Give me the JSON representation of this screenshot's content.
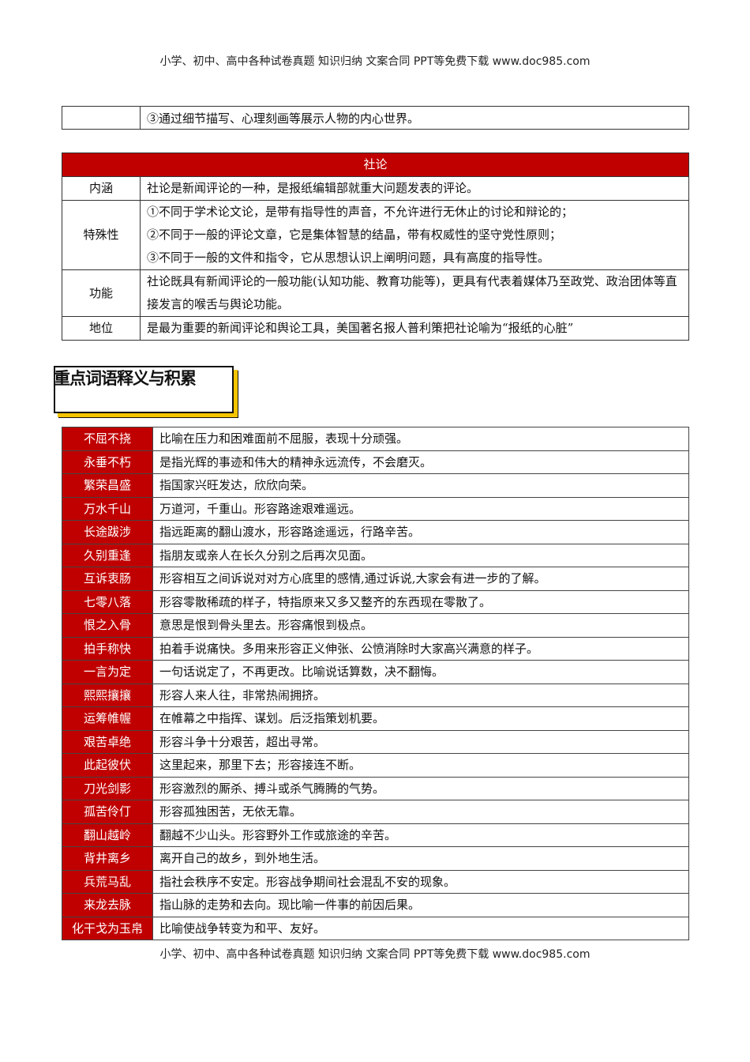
{
  "header": "小学、初中、高中各种试卷真题 知识归纳 文案合同 PPT等免费下载   www.doc985.com",
  "footer": "小学、初中、高中各种试卷真题 知识归纳 文案合同 PPT等免费下载   www.doc985.com",
  "top_row": {
    "label": "",
    "text": "③通过细节描写、心理刻画等展示人物的内心世界。"
  },
  "editorial": {
    "title": "社论",
    "rows": [
      {
        "label": "内涵",
        "lines": [
          "社论是新闻评论的一种，是报纸编辑部就重大问题发表的评论。"
        ]
      },
      {
        "label": "特殊性",
        "lines": [
          "①不同于学术论文论，是带有指导性的声音，不允许进行无休止的讨论和辩论的；",
          "②不同于一般的评论文章，它是集体智慧的结晶，带有权威性的坚守党性原则；",
          "③不同于一般的文件和指令，它从思想认识上阐明问题，具有高度的指导性。"
        ]
      },
      {
        "label": "功能",
        "lines": [
          "社论既具有新闻评论的一般功能(认知功能、教育功能等)，更具有代表着媒体乃至政党、政治团体等直接发言的喉舌与舆论功能。"
        ]
      },
      {
        "label": "地位",
        "lines": [
          "是最为重要的新闻评论和舆论工具，美国著名报人普利策把社论喻为“报纸的心脏”"
        ]
      }
    ]
  },
  "section_heading": "重点词语释义与积累",
  "colors": {
    "accent": "#c00000",
    "shadow": "#f5c400"
  },
  "vocab": [
    {
      "word": "不屈不挠",
      "meaning": "比喻在压力和困难面前不屈服，表现十分顽强。"
    },
    {
      "word": "永垂不朽",
      "meaning": "是指光辉的事迹和伟大的精神永远流传，不会磨灭。"
    },
    {
      "word": "繁荣昌盛",
      "meaning": "指国家兴旺发达，欣欣向荣。"
    },
    {
      "word": "万水千山",
      "meaning": "万道河，千重山。形容路途艰难遥远。"
    },
    {
      "word": "长途跋涉",
      "meaning": "指远距离的翻山渡水，形容路途遥远，行路辛苦。"
    },
    {
      "word": "久别重逢",
      "meaning": "指朋友或亲人在长久分别之后再次见面。"
    },
    {
      "word": "互诉衷肠",
      "meaning": "形容相互之间诉说对对方心底里的感情,通过诉说,大家会有进一步的了解。"
    },
    {
      "word": "七零八落",
      "meaning": "形容零散稀疏的样子，特指原来又多又整齐的东西现在零散了。"
    },
    {
      "word": "恨之入骨",
      "meaning": "意思是恨到骨头里去。形容痛恨到极点。"
    },
    {
      "word": "拍手称快",
      "meaning": "拍着手说痛快。多用来形容正义伸张、公愤消除时大家高兴满意的样子。"
    },
    {
      "word": "一言为定",
      "meaning": "一句话说定了，不再更改。比喻说话算数，决不翻悔。"
    },
    {
      "word": "熙熙攘攘",
      "meaning": "形容人来人往，非常热闹拥挤。"
    },
    {
      "word": "运筹帷幄",
      "meaning": "在帷幕之中指挥、谋划。后泛指策划机要。"
    },
    {
      "word": "艰苦卓绝",
      "meaning": "形容斗争十分艰苦，超出寻常。"
    },
    {
      "word": "此起彼伏",
      "meaning": "这里起来，那里下去；形容接连不断。"
    },
    {
      "word": "刀光剑影",
      "meaning": "形容激烈的厮杀、搏斗或杀气腾腾的气势。"
    },
    {
      "word": "孤苦伶仃",
      "meaning": "形容孤独困苦，无依无靠。"
    },
    {
      "word": "翻山越岭",
      "meaning": "翻越不少山头。形容野外工作或旅途的辛苦。"
    },
    {
      "word": "背井离乡",
      "meaning": "离开自己的故乡，到外地生活。"
    },
    {
      "word": "兵荒马乱",
      "meaning": "指社会秩序不安定。形容战争期间社会混乱不安的现象。"
    },
    {
      "word": "来龙去脉",
      "meaning": "指山脉的走势和去向。现比喻一件事的前因后果。"
    },
    {
      "word": "化干戈为玉帛",
      "meaning": "比喻使战争转变为和平、友好。"
    }
  ]
}
